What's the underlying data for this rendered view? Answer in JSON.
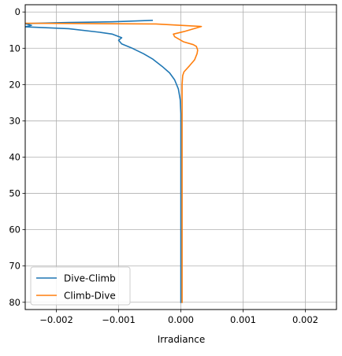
{
  "chart_data": {
    "type": "line",
    "title": "",
    "xlabel": "Irradiance",
    "ylabel": "",
    "xlim": [
      -0.0025,
      0.0025
    ],
    "ylim": [
      82,
      -2
    ],
    "y_inverted": true,
    "grid": true,
    "legend_position": "lower-left",
    "x_ticks": [
      -0.002,
      -0.001,
      0.0,
      0.001,
      0.002
    ],
    "x_tick_labels": [
      "−0.002",
      "−0.001",
      "0.000",
      "0.001",
      "0.002"
    ],
    "y_ticks": [
      0,
      10,
      20,
      30,
      40,
      50,
      60,
      70,
      80
    ],
    "y_tick_labels": [
      "0",
      "10",
      "20",
      "30",
      "40",
      "50",
      "60",
      "70",
      "80"
    ],
    "series": [
      {
        "name": "Dive-Climb",
        "color": "#1f77b4",
        "points": [
          [
            -0.00045,
            2.3
          ],
          [
            -0.0011,
            2.7
          ],
          [
            -0.0018,
            2.9
          ],
          [
            -0.0025,
            3.2
          ],
          [
            -0.0024,
            3.7
          ],
          [
            -0.0025,
            4.1
          ],
          [
            -0.0018,
            4.6
          ],
          [
            -0.0013,
            5.6
          ],
          [
            -0.0011,
            6.1
          ],
          [
            -0.00095,
            7.1
          ],
          [
            -0.001,
            7.8
          ],
          [
            -0.00095,
            8.8
          ],
          [
            -0.00078,
            10.0
          ],
          [
            -0.0006,
            11.5
          ],
          [
            -0.00045,
            13.0
          ],
          [
            -0.0003,
            15.0
          ],
          [
            -0.00018,
            16.8
          ],
          [
            -0.0001,
            18.7
          ],
          [
            -4e-05,
            21.2
          ],
          [
            -1e-05,
            24.2
          ],
          [
            0.0,
            28.0
          ],
          [
            0.0,
            80.2
          ]
        ]
      },
      {
        "name": "Climb-Dive",
        "color": "#ff7f0e",
        "points": [
          [
            2e-05,
            80.2
          ],
          [
            2e-05,
            20.0
          ],
          [
            3e-05,
            17.5
          ],
          [
            5e-05,
            16.5
          ],
          [
            0.00014,
            14.8
          ],
          [
            0.00022,
            13.2
          ],
          [
            0.00026,
            11.5
          ],
          [
            0.00027,
            10.5
          ],
          [
            0.00025,
            9.5
          ],
          [
            0.0002,
            9.0
          ],
          [
            4e-05,
            8.2
          ],
          [
            -0.0001,
            6.8
          ],
          [
            -0.00012,
            6.1
          ],
          [
            5e-05,
            5.4
          ],
          [
            0.00033,
            4.0
          ],
          [
            -0.0004,
            3.3
          ],
          [
            -0.0025,
            3.1
          ]
        ]
      }
    ]
  }
}
